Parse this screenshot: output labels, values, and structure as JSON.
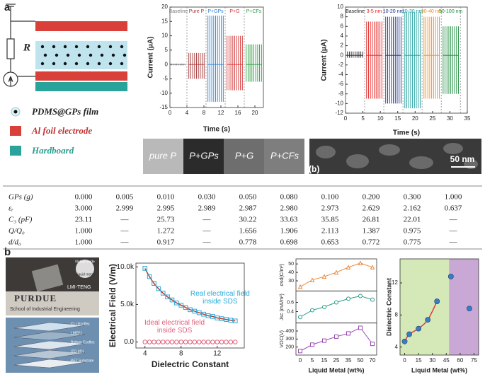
{
  "panel_labels": [
    "a",
    "b"
  ],
  "diagram": {
    "resistor": "R",
    "ammeter": "A"
  },
  "legend": [
    "PDMS@GPs film",
    "Al foil electrode",
    "Hardboard"
  ],
  "photo_labels": [
    "pure P",
    "P+GPs",
    "P+G",
    "P+CFs"
  ],
  "sem": {
    "label": "(b)",
    "scale": "50 nm"
  },
  "table": {
    "rows": [
      [
        "GPs (g)",
        "0.000",
        "0.005",
        "0.010",
        "0.030",
        "0.050",
        "0.080",
        "0.100",
        "0.200",
        "0.300",
        "1.000"
      ],
      [
        "εᵣ",
        "3.000",
        "2.999",
        "2.995",
        "2.989",
        "2.987",
        "2.980",
        "2.973",
        "2.629",
        "2.162",
        "0.637"
      ],
      [
        "C₃ (pF)",
        "23.11",
        "—",
        "25.73",
        "—",
        "30.22",
        "33.63",
        "35.85",
        "26.81",
        "22.01",
        "—"
      ],
      [
        "Q/Q₀",
        "1.000",
        "—",
        "1.272",
        "—",
        "1.656",
        "1.906",
        "2.113",
        "1.387",
        "0.975",
        "—"
      ],
      [
        "d/d₀",
        "1.000",
        "—",
        "0.917",
        "—",
        "0.778",
        "0.698",
        "0.653",
        "0.772",
        "0.775",
        "—"
      ]
    ]
  },
  "device_photo": {
    "texts": [
      "PURDUE",
      "School of Industrial Engineering",
      "LMI-TENG",
      "Native oxide",
      "Liquid metal"
    ]
  },
  "layers": [
    "CL | Ecoflex",
    "LMEF1",
    "Bottom Ecoflex",
    "ITO (IO)",
    "PET Substrate"
  ],
  "chart_data": [
    {
      "type": "spikes",
      "xlabel": "Time (s)",
      "ylabel": "Current (μA)",
      "xlim": [
        0,
        22
      ],
      "xticks": [
        0,
        4,
        8,
        12,
        16,
        20
      ],
      "ylim": [
        -15,
        20
      ],
      "yticks": [
        -15,
        -10,
        -5,
        0,
        5,
        10,
        15,
        20
      ],
      "categories": [
        "Baseline",
        "Pure P",
        "P+GPs",
        "P+G",
        "P+CFs"
      ],
      "boundaries": [
        0,
        4,
        8.5,
        13,
        17.5,
        22
      ],
      "highs": [
        0.3,
        4,
        17,
        10,
        7
      ],
      "lows": [
        -0.3,
        -5,
        -13,
        -9,
        -6
      ],
      "colors": [
        "#777777",
        "#a33333",
        "#2a7fd0",
        "#d03030",
        "#2a9a40"
      ]
    },
    {
      "type": "spikes",
      "xlabel": "Time (s)",
      "ylabel": "Current (μA)",
      "xlim": [
        0,
        35
      ],
      "xticks": [
        0,
        5,
        10,
        15,
        20,
        25,
        30,
        35
      ],
      "ylim": [
        -12,
        10
      ],
      "yticks": [
        -12,
        -10,
        -8,
        -6,
        -4,
        -2,
        0,
        2,
        4,
        6,
        8,
        10
      ],
      "categories": [
        "Baseline",
        "3-5 nm",
        "10-20 nm",
        "20-30 nm",
        "30-40 nm",
        "50-100 nm"
      ],
      "boundaries": [
        0,
        5.5,
        11,
        16.5,
        22,
        27.5,
        33
      ],
      "highs": [
        0.8,
        7,
        8,
        9,
        8,
        6
      ],
      "lows": [
        -0.5,
        -9,
        -10,
        -11,
        -9,
        -8
      ],
      "colors": [
        "#222222",
        "#e02020",
        "#1a2a8a",
        "#1a9a9a",
        "#f08a20",
        "#1a8a3a"
      ]
    },
    {
      "type": "line",
      "xlabel": "Dielectric Constant",
      "ylabel": "Electrical Field (V/m)",
      "xlim": [
        3,
        15
      ],
      "xticks": [
        4,
        8,
        12
      ],
      "ylim": [
        -800,
        10500
      ],
      "yticks": [
        {
          "value": 0,
          "label": "0.0"
        },
        {
          "value": 5000,
          "label": "5.0k"
        },
        {
          "value": 10000,
          "label": "10.0k"
        }
      ],
      "x": [
        4,
        4.5,
        5,
        5.5,
        6,
        6.5,
        7,
        7.5,
        8,
        8.5,
        9,
        9.5,
        10,
        10.5,
        11,
        11.5,
        12,
        12.5,
        13,
        13.5,
        14
      ],
      "series": [
        {
          "name": "Real electrical field inside SDS",
          "color": "#29a8d8",
          "marker": "square",
          "fit_color": "#c0392b",
          "values": [
            9800,
            8700,
            7800,
            7100,
            6500,
            6000,
            5600,
            5200,
            4900,
            4600,
            4300,
            4100,
            3900,
            3700,
            3500,
            3400,
            3200,
            3100,
            3000,
            2900,
            2800
          ]
        },
        {
          "name": "Ideal electrical field inside SDS",
          "color": "#e0607a",
          "marker": "circle",
          "values": [
            0,
            0,
            0,
            0,
            0,
            0,
            0,
            0,
            0,
            0,
            0,
            0,
            0,
            0,
            0,
            0,
            0,
            0,
            0,
            0,
            0
          ]
        }
      ]
    },
    {
      "type": "stacked",
      "xlabel": "Liquid Metal (wt%)",
      "categories": [
        "0",
        "5",
        "15",
        "25",
        "35",
        "50",
        "70"
      ],
      "panels": [
        {
          "ylabel": "σsd(C/m²)",
          "ylim": [
            18,
            56
          ],
          "yticks": [
            30,
            40,
            50
          ],
          "color": "#e8873a",
          "marker": "triangle",
          "values": [
            23,
            31,
            35,
            40,
            46,
            51,
            46
          ]
        },
        {
          "ylabel": "Jsc (mA/m²)",
          "ylim": [
            0.15,
            0.85
          ],
          "yticks": [
            0.4,
            0.6
          ],
          "color": "#2a9a8a",
          "marker": "circle",
          "values": [
            0.28,
            0.43,
            0.5,
            0.6,
            0.68,
            0.74,
            0.66
          ]
        },
        {
          "ylabel": "VOC(V)",
          "ylim": [
            100,
            500
          ],
          "yticks": [
            200,
            300,
            400
          ],
          "color": "#9a4ab0",
          "marker": "square",
          "values": [
            150,
            230,
            280,
            330,
            370,
            440,
            240
          ]
        }
      ]
    },
    {
      "type": "scatter",
      "xlabel": "Liquid Metal (wt%)",
      "ylabel": "Dielectric Constant",
      "xlim": [
        -5,
        80
      ],
      "xticks": [
        0,
        15,
        30,
        45,
        60,
        75
      ],
      "ylim": [
        3,
        15
      ],
      "yticks": [
        4,
        8,
        12
      ],
      "regions": [
        {
          "range": [
            -5,
            48
          ],
          "color": "#d5e8b8"
        },
        {
          "range": [
            48,
            80
          ],
          "color": "#c9a8d6"
        }
      ],
      "x": [
        0,
        5,
        15,
        25,
        35,
        50,
        70
      ],
      "values": [
        4.7,
        5.6,
        6.3,
        7.4,
        9.7,
        12.8,
        8.8
      ],
      "color": "#3b7dc4",
      "fit_color": "#e03030"
    }
  ]
}
